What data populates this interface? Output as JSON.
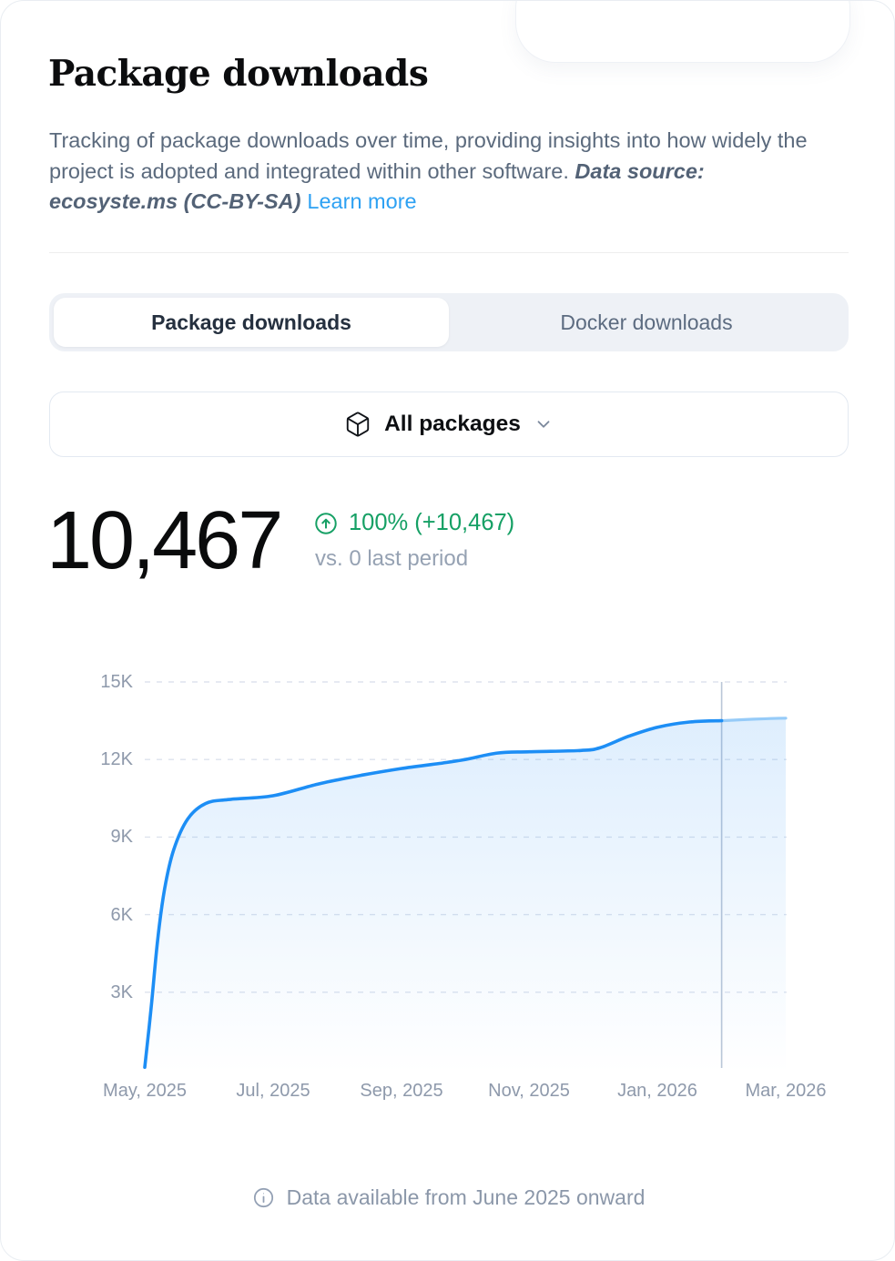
{
  "header": {
    "title": "Package downloads",
    "description": "Tracking of package downloads over time, providing insights into how widely the project is adopted and integrated within other software.",
    "description_source": "Data source: ecosyste.ms (CC-BY-SA)",
    "learn_more_label": "Learn more"
  },
  "tabs": [
    {
      "label": "Package downloads",
      "active": true
    },
    {
      "label": "Docker downloads",
      "active": false
    }
  ],
  "selector": {
    "label": "All packages",
    "icon": "package-cube-icon",
    "chevron": "chevron-down-icon"
  },
  "stats": {
    "total": "10,467",
    "change": "100% (+10,467)",
    "comparison": "vs. 0 last period"
  },
  "footer": {
    "note": "Data available from June 2025 onward"
  },
  "colors": {
    "accent_blue": "#1d8ef5",
    "projection_blue": "#96cbf8",
    "area_fill_top": "rgba(33,140,243,0.15)",
    "area_fill_bottom": "rgba(33,140,243,0.0)",
    "green": "#16a065",
    "link_blue": "#2da1f3",
    "grid": "#dde3ee",
    "crosshair": "#bac6d7",
    "axis_label": "#8e99ab"
  },
  "chart_data": {
    "type": "area",
    "title": "Package downloads over time",
    "xlabel": "",
    "ylabel": "",
    "grid": "horizontal-dashed",
    "legend": "none",
    "ylim": [
      0,
      15000
    ],
    "xlim_months": [
      0,
      10
    ],
    "y_ticks": [
      "15K",
      "12K",
      "9K",
      "6K",
      "3K"
    ],
    "y_tick_values": [
      15000,
      12000,
      9000,
      6000,
      3000
    ],
    "x_ticks": [
      "May, 2025",
      "Jul, 2025",
      "Sep, 2025",
      "Nov, 2025",
      "Jan, 2026",
      "Mar, 2026"
    ],
    "x_tick_months": [
      0,
      2,
      4,
      6,
      8,
      10
    ],
    "crosshair_month": 9.0,
    "series": [
      {
        "name": "package-downloads-cumulative",
        "style": "solid",
        "points": [
          [
            0.0,
            100
          ],
          [
            0.1,
            2400
          ],
          [
            0.2,
            5000
          ],
          [
            0.31,
            7000
          ],
          [
            0.45,
            8500
          ],
          [
            0.67,
            9700
          ],
          [
            0.95,
            10300
          ],
          [
            1.3,
            10450
          ],
          [
            2.0,
            10600
          ],
          [
            2.7,
            11050
          ],
          [
            3.4,
            11400
          ],
          [
            4.0,
            11650
          ],
          [
            4.6,
            11850
          ],
          [
            5.0,
            12000
          ],
          [
            5.5,
            12250
          ],
          [
            6.0,
            12300
          ],
          [
            6.8,
            12350
          ],
          [
            7.1,
            12450
          ],
          [
            7.55,
            12900
          ],
          [
            8.0,
            13250
          ],
          [
            8.5,
            13450
          ],
          [
            9.0,
            13500
          ]
        ]
      },
      {
        "name": "projection",
        "style": "light",
        "points": [
          [
            9.0,
            13500
          ],
          [
            9.5,
            13560
          ],
          [
            10.0,
            13600
          ]
        ]
      }
    ]
  }
}
